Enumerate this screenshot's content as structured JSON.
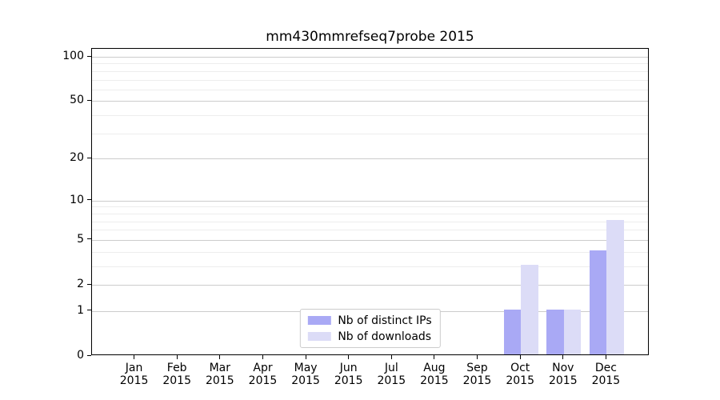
{
  "chart_data": {
    "type": "bar",
    "title": "mm430mmrefseq7probe 2015",
    "categories": [
      "Jan",
      "Feb",
      "Mar",
      "Apr",
      "May",
      "Jun",
      "Jul",
      "Aug",
      "Sep",
      "Oct",
      "Nov",
      "Dec"
    ],
    "x_year": "2015",
    "series": [
      {
        "name": "Nb of distinct IPs",
        "color": "#a9a9f5",
        "values": [
          0,
          0,
          0,
          0,
          0,
          0,
          0,
          0,
          0,
          1,
          1,
          4
        ]
      },
      {
        "name": "Nb of downloads",
        "color": "#dcdcf7",
        "values": [
          0,
          0,
          0,
          0,
          0,
          0,
          0,
          0,
          0,
          3,
          1,
          7
        ]
      }
    ],
    "y_axis": {
      "scale": "log1p",
      "ticks": [
        0,
        1,
        2,
        5,
        10,
        20,
        50,
        100
      ],
      "minor_gridlines": [
        3,
        4,
        6,
        7,
        8,
        9,
        30,
        40,
        60,
        70,
        80,
        90
      ],
      "ylim": [
        0,
        113
      ]
    },
    "grid": true,
    "legend_position": "lower center",
    "colors": {
      "major_grid": "#cccccc",
      "minor_grid": "#ededed",
      "axis": "#000000",
      "background": "#ffffff"
    }
  }
}
